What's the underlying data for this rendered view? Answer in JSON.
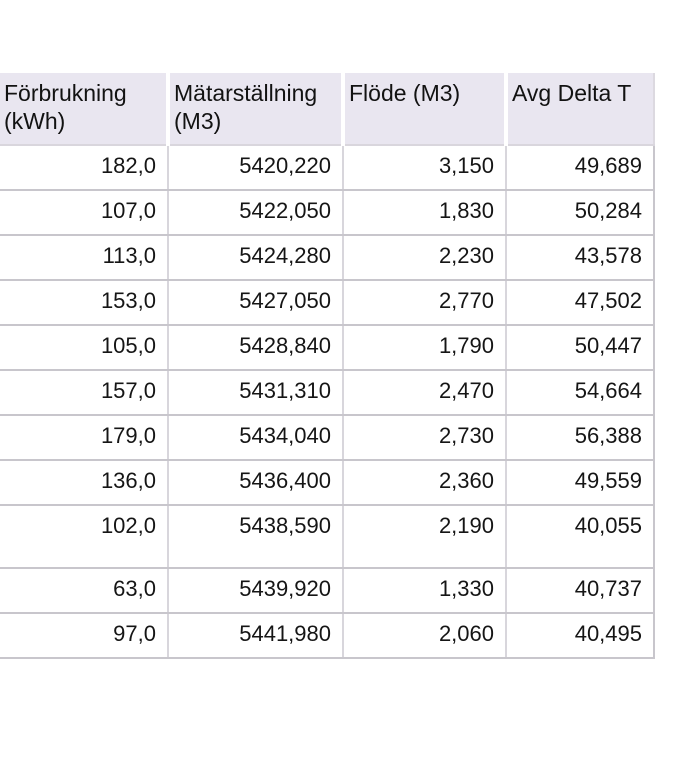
{
  "table": {
    "columns": [
      "Förbrukning (kWh)",
      "Mätarställning (M3)",
      "Flöde (M3)",
      "Avg Delta T"
    ],
    "rows": [
      [
        "182,0",
        "5420,220",
        "3,150",
        "49,689"
      ],
      [
        "107,0",
        "5422,050",
        "1,830",
        "50,284"
      ],
      [
        "113,0",
        "5424,280",
        "2,230",
        "43,578"
      ],
      [
        "153,0",
        "5427,050",
        "2,770",
        "47,502"
      ],
      [
        "105,0",
        "5428,840",
        "1,790",
        "50,447"
      ],
      [
        "157,0",
        "5431,310",
        "2,470",
        "54,664"
      ],
      [
        "179,0",
        "5434,040",
        "2,730",
        "56,388"
      ],
      [
        "136,0",
        "5436,400",
        "2,360",
        "49,559"
      ],
      [
        "102,0",
        "5438,590",
        "2,190",
        "40,055"
      ],
      [
        "63,0",
        "5439,920",
        "1,330",
        "40,737"
      ],
      [
        "97,0",
        "5441,980",
        "2,060",
        "40,495"
      ]
    ]
  },
  "colors": {
    "header_bg": "#e9e6f0",
    "row_line": "#c8c6cc",
    "col_line": "#d8d6dc",
    "header_line": "#d9d6dd",
    "text": "#151515",
    "page_bg": "#ffffff"
  },
  "chart_data": {
    "type": "table",
    "title": "",
    "columns": [
      "Förbrukning (kWh)",
      "Mätarställning (M3)",
      "Flöde (M3)",
      "Avg Delta T"
    ],
    "series": [
      {
        "name": "Förbrukning (kWh)",
        "values": [
          182.0,
          107.0,
          113.0,
          153.0,
          105.0,
          157.0,
          179.0,
          136.0,
          102.0,
          63.0,
          97.0
        ]
      },
      {
        "name": "Mätarställning (M3)",
        "values": [
          5420.22,
          5422.05,
          5424.28,
          5427.05,
          5428.84,
          5431.31,
          5434.04,
          5436.4,
          5438.59,
          5439.92,
          5441.98
        ]
      },
      {
        "name": "Flöde (M3)",
        "values": [
          3.15,
          1.83,
          2.23,
          2.77,
          1.79,
          2.47,
          2.73,
          2.36,
          2.19,
          1.33,
          2.06
        ]
      },
      {
        "name": "Avg Delta T",
        "values": [
          49.689,
          50.284,
          43.578,
          47.502,
          50.447,
          54.664,
          56.388,
          49.559,
          40.055,
          40.737,
          40.495
        ]
      }
    ],
    "number_format": "sv-SE (decimal comma)",
    "layout_hints": {
      "header_background": "#e9e6f0",
      "gridlines": true,
      "header_align": "left",
      "cell_align": "right"
    }
  }
}
